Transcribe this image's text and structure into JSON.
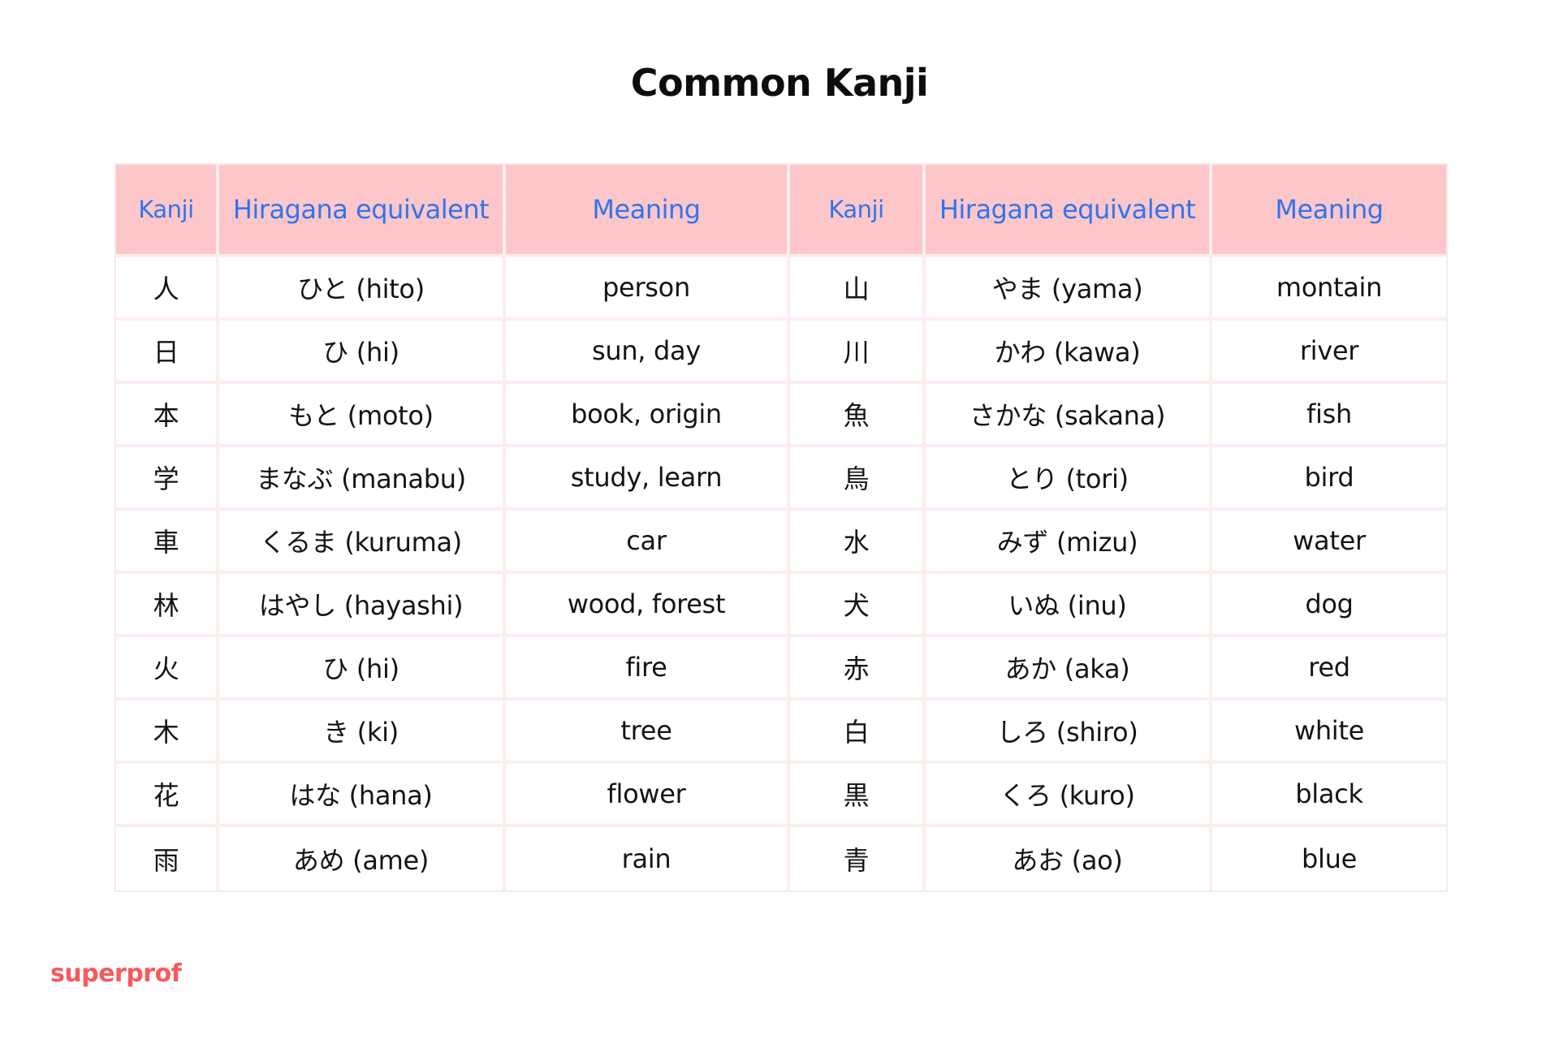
{
  "title": "Common Kanji",
  "colors": {
    "header_background": "#fdc7c9",
    "header_text": "#2f74f0",
    "grid_lines": "#fdeeee",
    "brand": "#f8585c"
  },
  "table": {
    "headers": [
      "Kanji",
      "Hiragana equivalent",
      "Meaning",
      "Kanji",
      "Hiragana equivalent",
      "Meaning"
    ],
    "rows": [
      [
        "人",
        "ひと (hito)",
        "person",
        "山",
        "やま (yama)",
        "montain"
      ],
      [
        "日",
        "ひ (hi)",
        "sun, day",
        "川",
        "かわ (kawa)",
        "river"
      ],
      [
        "本",
        "もと (moto)",
        "book, origin",
        "魚",
        "さかな (sakana)",
        "fish"
      ],
      [
        "学",
        "まなぶ (manabu)",
        "study, learn",
        "鳥",
        "とり (tori)",
        "bird"
      ],
      [
        "車",
        "くるま (kuruma)",
        "car",
        "水",
        "みず (mizu)",
        "water"
      ],
      [
        "林",
        "はやし (hayashi)",
        "wood, forest",
        "犬",
        "いぬ (inu)",
        "dog"
      ],
      [
        "火",
        "ひ (hi)",
        "fire",
        "赤",
        "あか (aka)",
        "red"
      ],
      [
        "木",
        "き (ki)",
        "tree",
        "白",
        "しろ (shiro)",
        "white"
      ],
      [
        "花",
        "はな (hana)",
        "flower",
        "黒",
        "くろ (kuro)",
        "black"
      ],
      [
        "雨",
        "あめ (ame)",
        "rain",
        "青",
        "あお (ao)",
        "blue"
      ]
    ]
  },
  "brand": {
    "logo_text": "superprof"
  }
}
